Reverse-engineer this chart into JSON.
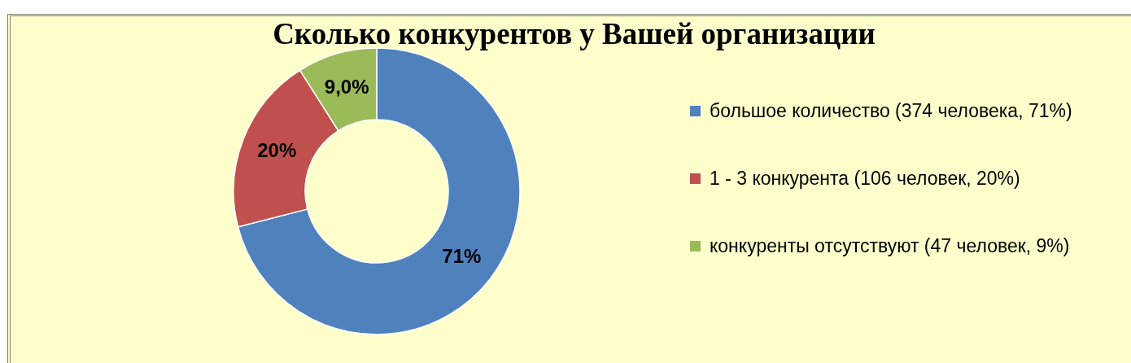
{
  "chart_data": {
    "type": "donut",
    "title": "Сколько конкурентов у Вашей организации",
    "categories": [
      "большое количество (374 человека, 71%)",
      "1 - 3 конкурента (106 человек, 20%)",
      "конкуренты отсутствуют (47 человек, 9%)"
    ],
    "values": [
      71,
      20,
      9
    ],
    "colors": [
      "#4f81bd",
      "#c0504d",
      "#9bbb59"
    ],
    "value_labels": [
      "71%",
      "20%",
      "9,0%"
    ],
    "legend": "right"
  }
}
